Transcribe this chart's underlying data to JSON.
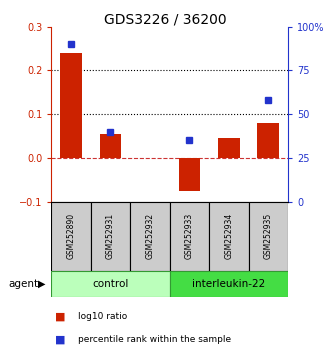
{
  "title": "GDS3226 / 36200",
  "samples": [
    "GSM252890",
    "GSM252931",
    "GSM252932",
    "GSM252933",
    "GSM252934",
    "GSM252935"
  ],
  "log10_ratio": [
    0.24,
    0.055,
    0.0,
    -0.075,
    0.045,
    0.08
  ],
  "percentile_rank": [
    90.0,
    40.0,
    null,
    35.0,
    null,
    58.0
  ],
  "groups": [
    {
      "label": "control",
      "indices": [
        0,
        1,
        2
      ],
      "color": "#bbffbb"
    },
    {
      "label": "interleukin-22",
      "indices": [
        3,
        4,
        5
      ],
      "color": "#44dd44"
    }
  ],
  "group_label": "agent",
  "ylim_left": [
    -0.1,
    0.3
  ],
  "ylim_right": [
    0,
    100
  ],
  "yticks_left": [
    -0.1,
    0.0,
    0.1,
    0.2,
    0.3
  ],
  "yticks_right": [
    0,
    25,
    50,
    75,
    100
  ],
  "ytick_labels_right": [
    "0",
    "25",
    "50",
    "75",
    "100%"
  ],
  "hlines": [
    0.1,
    0.2
  ],
  "bar_color": "#cc2200",
  "dot_color": "#2233cc",
  "zero_line_color": "#cc3333",
  "bg_sample_color": "#cccccc",
  "legend_items": [
    {
      "color": "#cc2200",
      "label": "log10 ratio"
    },
    {
      "color": "#2233cc",
      "label": "percentile rank within the sample"
    }
  ]
}
